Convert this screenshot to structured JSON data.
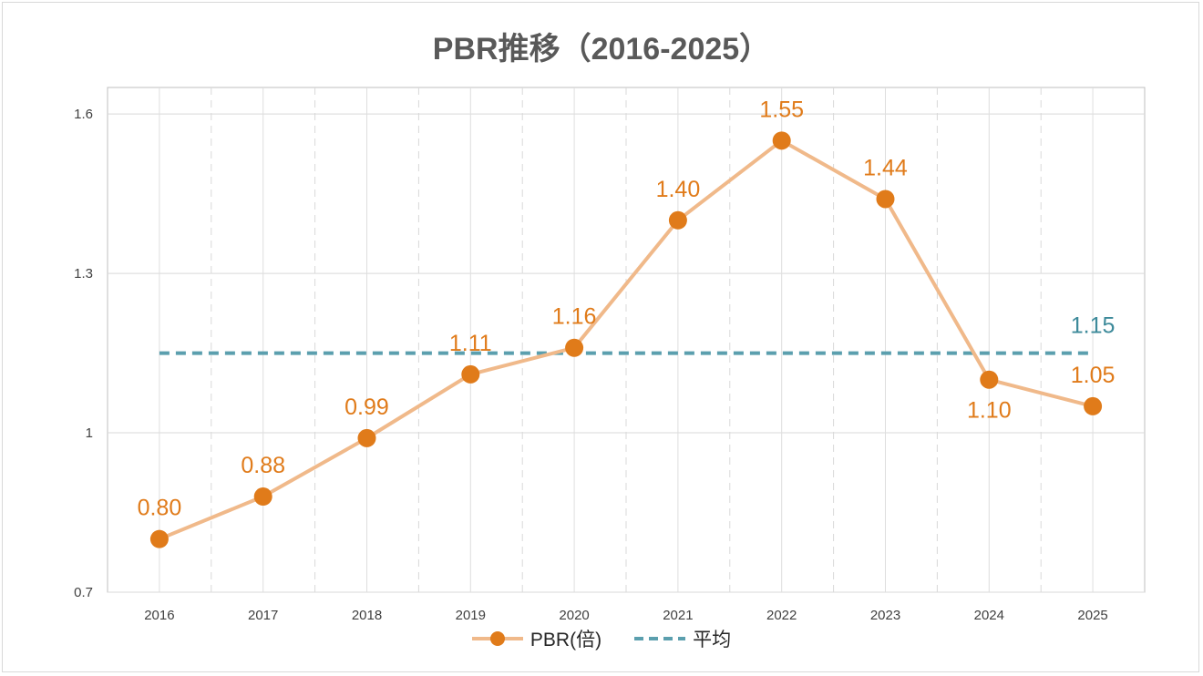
{
  "chart_data": {
    "type": "line",
    "title": "PBR推移（2016-2025）",
    "categories": [
      "2016",
      "2017",
      "2018",
      "2019",
      "2020",
      "2021",
      "2022",
      "2023",
      "2024",
      "2025"
    ],
    "series": [
      {
        "name": "PBR(倍)",
        "values": [
          0.8,
          0.88,
          0.99,
          1.11,
          1.16,
          1.4,
          1.55,
          1.44,
          1.1,
          1.05
        ],
        "color": "#e07b1a",
        "line_color": "#f0b98a"
      },
      {
        "name": "平均",
        "value": 1.15,
        "style": "dashed",
        "color": "#5b9fae"
      }
    ],
    "data_labels": [
      "0.80",
      "0.88",
      "0.99",
      "1.11",
      "1.16",
      "1.40",
      "1.55",
      "1.44",
      "1.10",
      "1.05"
    ],
    "average_label": "1.15",
    "yticks": [
      0.7,
      1.0,
      1.3,
      1.6
    ],
    "ytick_labels": [
      "0.7",
      "1",
      "1.3",
      "1.6"
    ],
    "ylim": [
      0.7,
      1.65
    ],
    "xlabel": "",
    "ylabel": "",
    "grid": true,
    "legend_position": "bottom"
  }
}
